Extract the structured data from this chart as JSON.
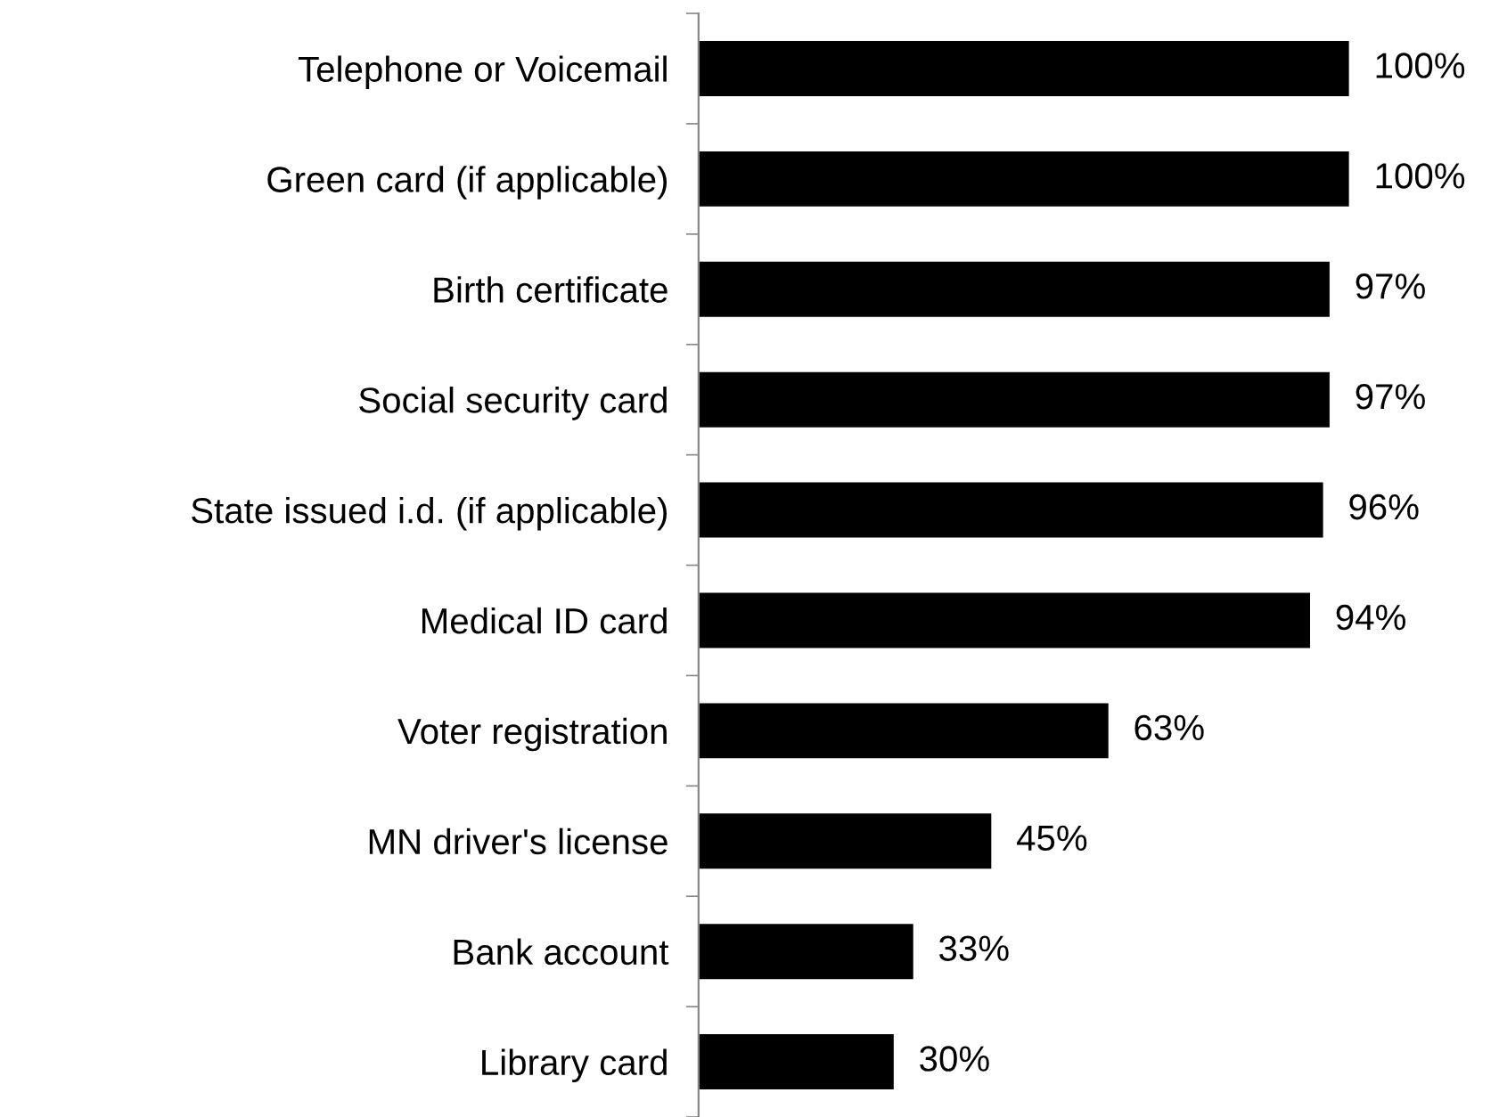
{
  "chart_data": {
    "type": "bar",
    "orientation": "horizontal",
    "categories": [
      "Telephone or Voicemail",
      "Green card (if applicable)",
      "Birth certificate",
      "Social security card",
      "State issued i.d. (if applicable)",
      "Medical ID card",
      "Voter registration",
      "MN driver's license",
      "Bank account",
      "Library card"
    ],
    "values": [
      100,
      100,
      97,
      97,
      96,
      94,
      63,
      45,
      33,
      30
    ],
    "value_labels": [
      "100%",
      "100%",
      "97%",
      "97%",
      "96%",
      "94%",
      "63%",
      "45%",
      "33%",
      "30%"
    ],
    "color": "#000000",
    "xlim": [
      0,
      100
    ],
    "grid": false,
    "legend": false
  }
}
